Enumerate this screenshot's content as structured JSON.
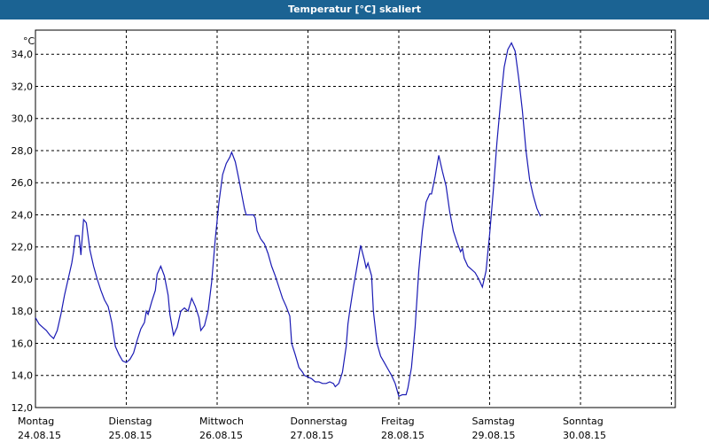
{
  "window": {
    "title": "Temperatur [°C] skaliert"
  },
  "chart_data": {
    "type": "line",
    "title": "Temperatur [°C] skaliert",
    "ylabel": "°C",
    "ylim": [
      12,
      35.5
    ],
    "xlim": [
      0,
      7.03
    ],
    "grid": true,
    "y_ticks": [
      "12,0",
      "14,0",
      "16,0",
      "18,0",
      "20,0",
      "22,0",
      "24,0",
      "26,0",
      "28,0",
      "30,0",
      "32,0",
      "34,0"
    ],
    "x_ticks": [
      {
        "day": "Montag",
        "date": "24.08.15"
      },
      {
        "day": "Dienstag",
        "date": "25.08.15"
      },
      {
        "day": "Mittwoch",
        "date": "26.08.15"
      },
      {
        "day": "Donnerstag",
        "date": "27.08.15"
      },
      {
        "day": "Freitag",
        "date": "28.08.15"
      },
      {
        "day": "Samstag",
        "date": "29.08.15"
      },
      {
        "day": "Sonntag",
        "date": "30.08.15"
      }
    ],
    "colors": {
      "line": "#1a1ab4",
      "grid": "#000000",
      "title_bar": "#1b6393"
    },
    "series": [
      {
        "values": [
          [
            0.0,
            17.6
          ],
          [
            0.04,
            17.2
          ],
          [
            0.08,
            17.0
          ],
          [
            0.12,
            16.8
          ],
          [
            0.16,
            16.5
          ],
          [
            0.2,
            16.3
          ],
          [
            0.24,
            16.8
          ],
          [
            0.28,
            17.8
          ],
          [
            0.32,
            19.0
          ],
          [
            0.36,
            20.0
          ],
          [
            0.4,
            21.0
          ],
          [
            0.42,
            21.7
          ],
          [
            0.44,
            22.7
          ],
          [
            0.48,
            22.7
          ],
          [
            0.5,
            21.5
          ],
          [
            0.53,
            23.7
          ],
          [
            0.56,
            23.5
          ],
          [
            0.6,
            21.8
          ],
          [
            0.64,
            20.8
          ],
          [
            0.68,
            20.0
          ],
          [
            0.72,
            19.3
          ],
          [
            0.76,
            18.7
          ],
          [
            0.8,
            18.3
          ],
          [
            0.84,
            17.3
          ],
          [
            0.88,
            15.8
          ],
          [
            0.92,
            15.3
          ],
          [
            0.96,
            14.9
          ],
          [
            1.0,
            14.8
          ],
          [
            1.04,
            15.0
          ],
          [
            1.08,
            15.4
          ],
          [
            1.12,
            16.2
          ],
          [
            1.16,
            16.9
          ],
          [
            1.2,
            17.3
          ],
          [
            1.22,
            18.0
          ],
          [
            1.24,
            17.8
          ],
          [
            1.28,
            18.6
          ],
          [
            1.32,
            19.3
          ],
          [
            1.34,
            20.3
          ],
          [
            1.38,
            20.8
          ],
          [
            1.42,
            20.2
          ],
          [
            1.46,
            19.0
          ],
          [
            1.48,
            17.8
          ],
          [
            1.52,
            16.5
          ],
          [
            1.56,
            17.0
          ],
          [
            1.6,
            18.0
          ],
          [
            1.64,
            18.2
          ],
          [
            1.68,
            18.0
          ],
          [
            1.72,
            18.8
          ],
          [
            1.76,
            18.3
          ],
          [
            1.8,
            17.6
          ],
          [
            1.82,
            16.8
          ],
          [
            1.86,
            17.1
          ],
          [
            1.9,
            18.0
          ],
          [
            1.94,
            19.8
          ],
          [
            1.98,
            22.5
          ],
          [
            2.02,
            24.8
          ],
          [
            2.06,
            26.5
          ],
          [
            2.1,
            27.2
          ],
          [
            2.14,
            27.6
          ],
          [
            2.16,
            27.9
          ],
          [
            2.2,
            27.3
          ],
          [
            2.24,
            26.2
          ],
          [
            2.28,
            25.0
          ],
          [
            2.3,
            24.4
          ],
          [
            2.32,
            24.0
          ],
          [
            2.36,
            24.0
          ],
          [
            2.4,
            24.0
          ],
          [
            2.42,
            23.8
          ],
          [
            2.44,
            23.0
          ],
          [
            2.48,
            22.5
          ],
          [
            2.52,
            22.2
          ],
          [
            2.56,
            21.6
          ],
          [
            2.6,
            20.8
          ],
          [
            2.64,
            20.2
          ],
          [
            2.68,
            19.5
          ],
          [
            2.72,
            18.8
          ],
          [
            2.76,
            18.3
          ],
          [
            2.8,
            17.7
          ],
          [
            2.82,
            16.0
          ],
          [
            2.86,
            15.3
          ],
          [
            2.9,
            14.5
          ],
          [
            2.94,
            14.2
          ],
          [
            2.96,
            14.0
          ],
          [
            3.0,
            13.9
          ],
          [
            3.04,
            13.8
          ],
          [
            3.08,
            13.6
          ],
          [
            3.12,
            13.6
          ],
          [
            3.16,
            13.5
          ],
          [
            3.2,
            13.5
          ],
          [
            3.24,
            13.6
          ],
          [
            3.28,
            13.5
          ],
          [
            3.3,
            13.3
          ],
          [
            3.34,
            13.5
          ],
          [
            3.38,
            14.2
          ],
          [
            3.42,
            15.8
          ],
          [
            3.44,
            17.2
          ],
          [
            3.46,
            18.0
          ],
          [
            3.5,
            19.5
          ],
          [
            3.54,
            20.8
          ],
          [
            3.58,
            22.1
          ],
          [
            3.62,
            21.2
          ],
          [
            3.64,
            20.7
          ],
          [
            3.66,
            21.0
          ],
          [
            3.7,
            20.2
          ],
          [
            3.72,
            18.0
          ],
          [
            3.76,
            16.0
          ],
          [
            3.8,
            15.2
          ],
          [
            3.84,
            14.8
          ],
          [
            3.88,
            14.4
          ],
          [
            3.92,
            14.0
          ],
          [
            3.96,
            13.5
          ],
          [
            4.0,
            12.7
          ],
          [
            4.04,
            12.8
          ],
          [
            4.08,
            12.8
          ],
          [
            4.1,
            13.2
          ],
          [
            4.14,
            14.5
          ],
          [
            4.18,
            17.0
          ],
          [
            4.22,
            20.5
          ],
          [
            4.26,
            23.0
          ],
          [
            4.3,
            24.8
          ],
          [
            4.34,
            25.3
          ],
          [
            4.36,
            25.3
          ],
          [
            4.4,
            26.4
          ],
          [
            4.44,
            27.7
          ],
          [
            4.48,
            26.7
          ],
          [
            4.52,
            25.8
          ],
          [
            4.56,
            24.2
          ],
          [
            4.6,
            23.0
          ],
          [
            4.64,
            22.3
          ],
          [
            4.68,
            21.7
          ],
          [
            4.7,
            21.9
          ],
          [
            4.72,
            21.3
          ],
          [
            4.76,
            20.8
          ],
          [
            4.8,
            20.6
          ],
          [
            4.84,
            20.4
          ],
          [
            4.88,
            20.0
          ],
          [
            4.92,
            19.5
          ],
          [
            4.96,
            20.5
          ],
          [
            5.0,
            22.8
          ],
          [
            5.04,
            25.5
          ],
          [
            5.08,
            28.5
          ],
          [
            5.12,
            31.0
          ],
          [
            5.16,
            33.2
          ],
          [
            5.2,
            34.3
          ],
          [
            5.24,
            34.7
          ],
          [
            5.28,
            34.2
          ],
          [
            5.32,
            32.5
          ],
          [
            5.36,
            30.5
          ],
          [
            5.4,
            28.0
          ],
          [
            5.44,
            26.2
          ],
          [
            5.48,
            25.2
          ],
          [
            5.52,
            24.4
          ],
          [
            5.56,
            23.9
          ]
        ]
      }
    ]
  }
}
